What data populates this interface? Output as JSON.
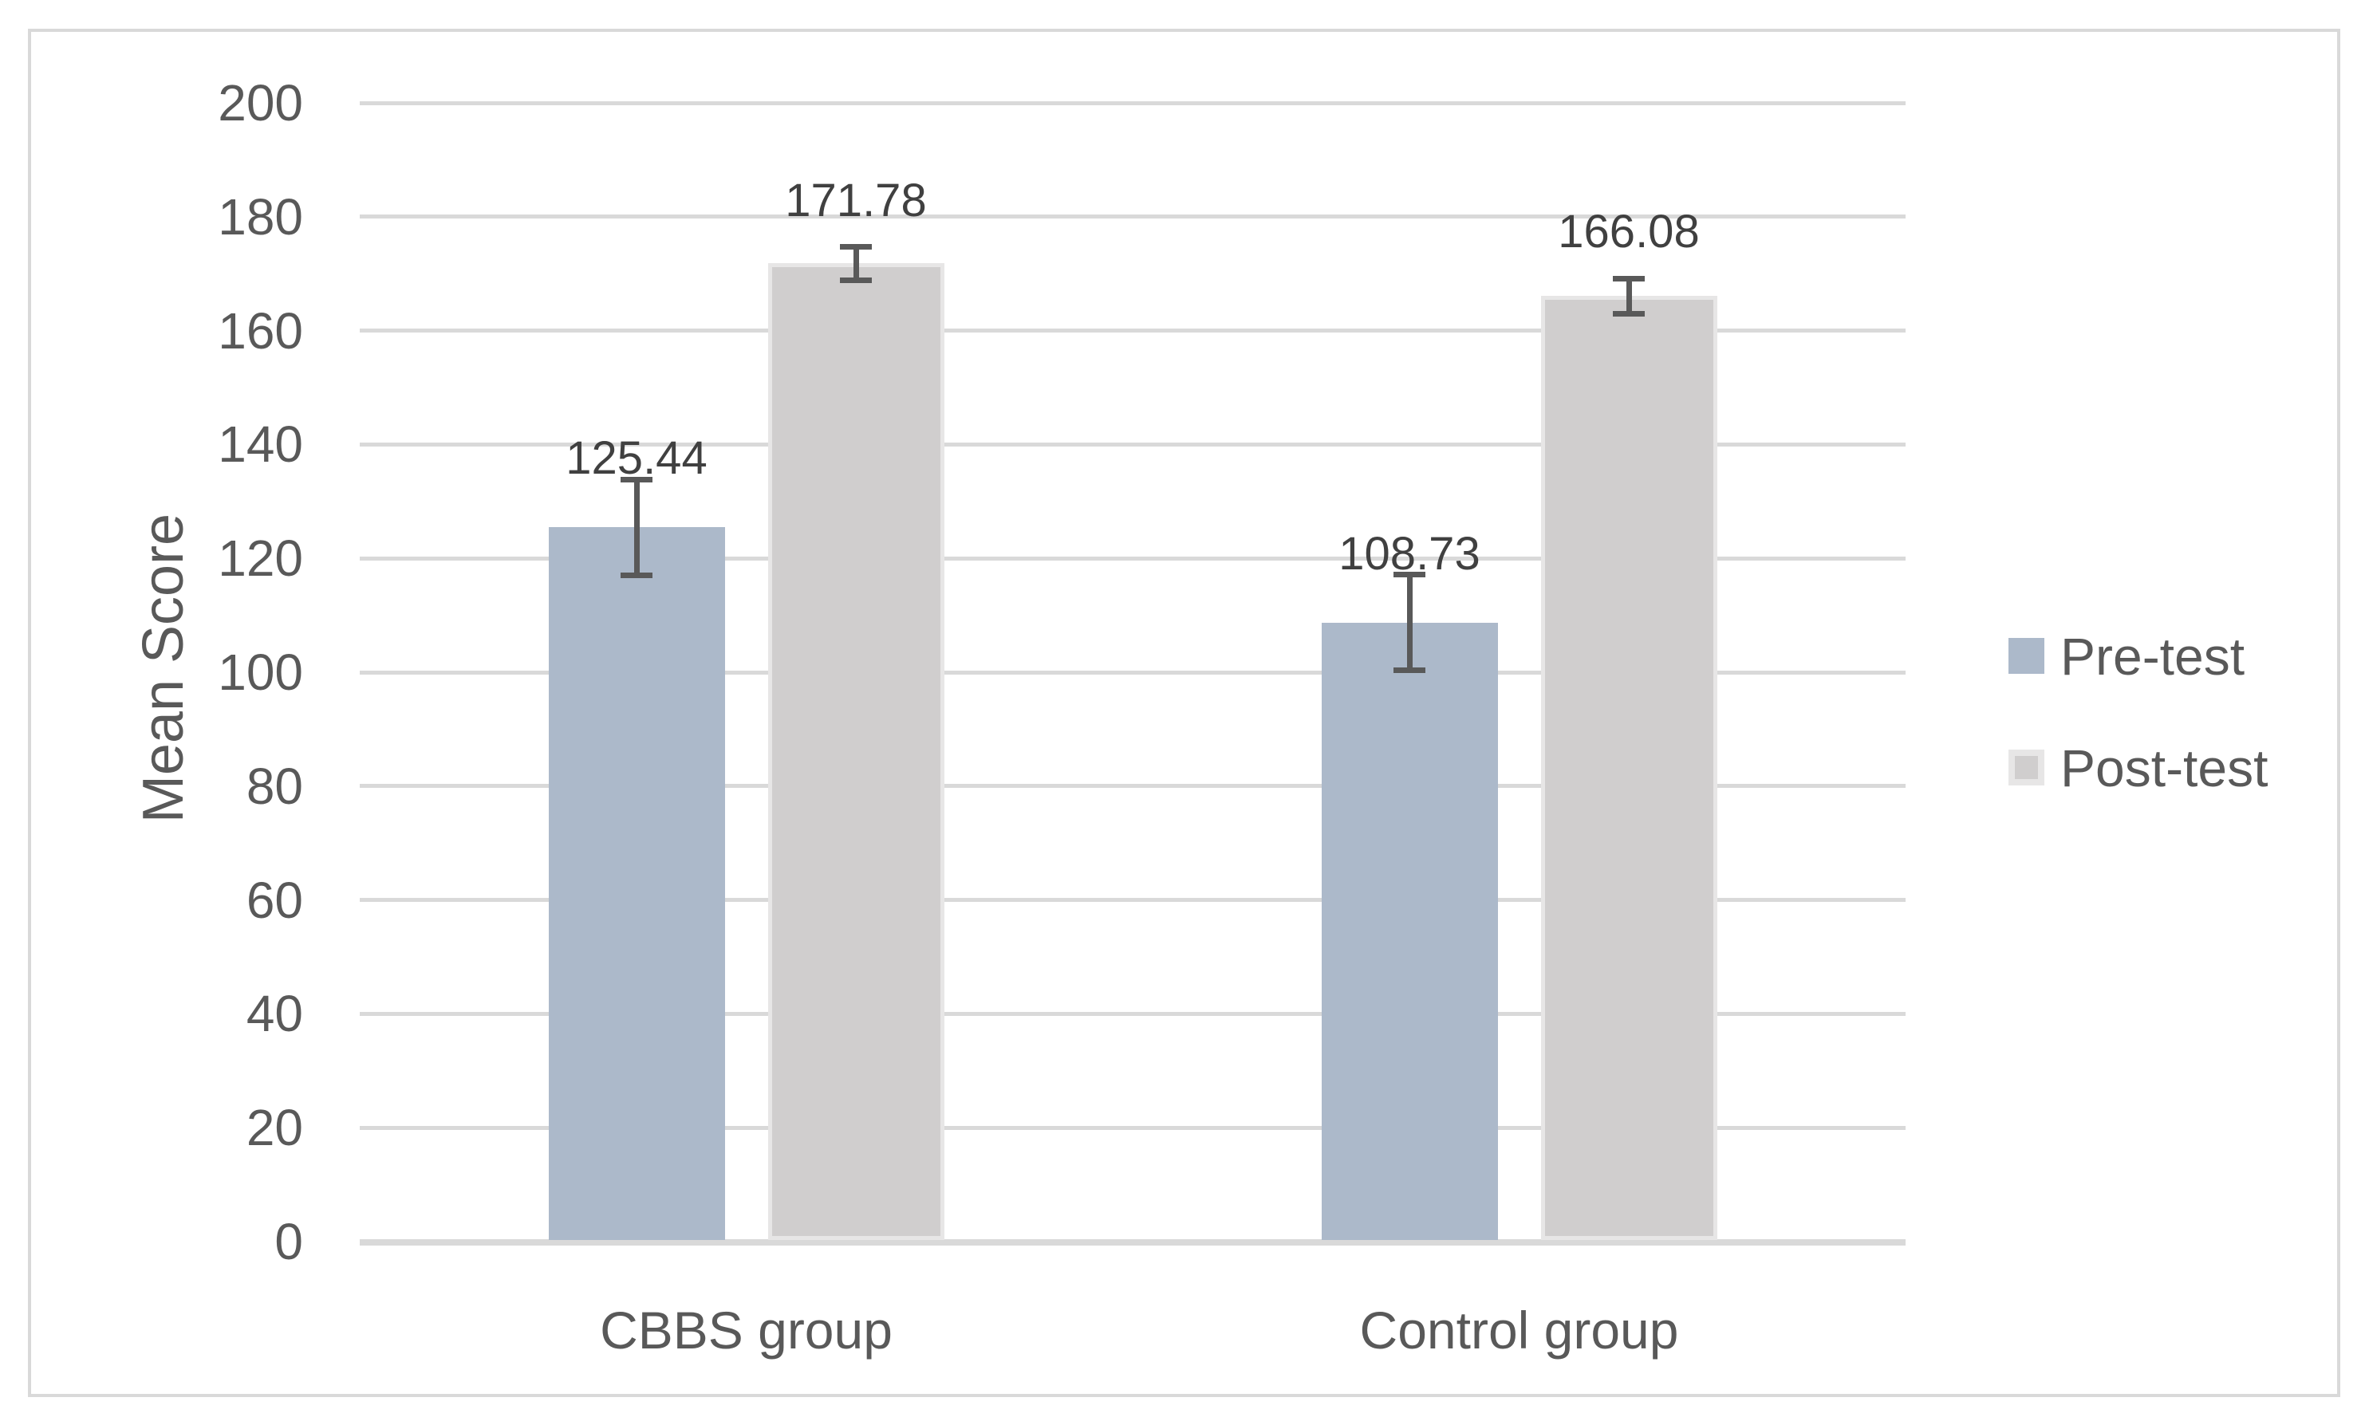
{
  "chart_data": {
    "type": "bar",
    "title": "",
    "xlabel": "",
    "ylabel": "Mean Score",
    "ylim": [
      0,
      200
    ],
    "yticks": [
      0,
      20,
      40,
      60,
      80,
      100,
      120,
      140,
      160,
      180,
      200
    ],
    "grid": true,
    "legend_position": "right",
    "categories": [
      "CBBS group",
      "Control group"
    ],
    "series": [
      {
        "name": "Pre-test",
        "values": [
          125.44,
          108.73
        ],
        "errors": [
          8.4,
          8.4
        ],
        "fill": "#acb9ca",
        "border": null
      },
      {
        "name": "Post-test",
        "values": [
          171.78,
          166.08
        ],
        "errors": [
          2.9,
          3.1
        ],
        "fill": "#d0cece",
        "border": "#e7e6e6"
      }
    ],
    "data_labels": [
      "125.44",
      "171.78",
      "108.73",
      "166.08"
    ]
  },
  "colors": {
    "background": "#ffffff",
    "chart_border": "#d9d9d9",
    "gridline": "#d9d9d9",
    "axis_line": "#d9d9d9",
    "tick_text": "#595959",
    "category_text": "#595959",
    "legend_text": "#595959",
    "axis_title_text": "#595959",
    "data_label_text": "#404040",
    "error_bar": "#595959"
  }
}
